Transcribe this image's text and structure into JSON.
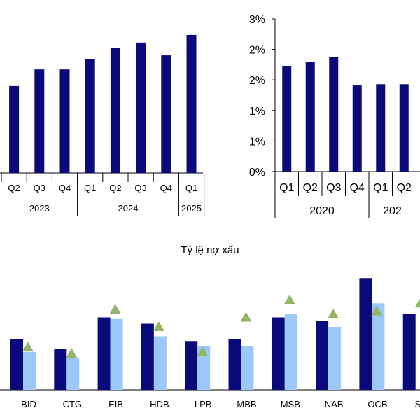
{
  "colors": {
    "navy": "#0a0a7a",
    "light_blue": "#9cc8f7",
    "green": "#93b56a",
    "axis": "#000000"
  },
  "chart_data": [
    {
      "type": "bar",
      "categories": [
        "Q2",
        "Q3",
        "Q4",
        "Q1",
        "Q2",
        "Q3",
        "Q4",
        "Q1"
      ],
      "groups": [
        {
          "label": "2023",
          "span": 3
        },
        {
          "label": "2024",
          "span": 4
        },
        {
          "label": "2025",
          "span": 1
        }
      ],
      "values": [
        68,
        81,
        81,
        89,
        98,
        102,
        92,
        108
      ],
      "ylim": [
        0,
        120
      ],
      "title": "",
      "xlabel": "",
      "ylabel": "",
      "grid": false
    },
    {
      "type": "bar",
      "categories": [
        "Q1",
        "Q2",
        "Q3",
        "Q4",
        "Q1",
        "Q2"
      ],
      "groups": [
        {
          "label": "2020",
          "span": 4
        },
        {
          "label": "202",
          "span": 2
        }
      ],
      "values": [
        1.72,
        1.79,
        1.87,
        1.41,
        1.43,
        1.43
      ],
      "ylim": [
        0,
        2.5
      ],
      "yticks": [
        "0%",
        "1%",
        "1%",
        "2%",
        "2%",
        "3%"
      ],
      "title": "",
      "xlabel": "",
      "ylabel": "",
      "grid": false
    },
    {
      "type": "bar",
      "title": "Tỷ lệ nợ xấu",
      "categories": [
        "BID",
        "CTG",
        "EIB",
        "HDB",
        "LPB",
        "MBB",
        "MSB",
        "NAB",
        "OCB",
        "SH"
      ],
      "series": [
        {
          "values": [
            1.6,
            1.3,
            2.3,
            2.1,
            1.55,
            1.6,
            2.3,
            2.2,
            3.55,
            2.4
          ]
        },
        {
          "values": [
            1.2,
            1.0,
            2.25,
            1.7,
            1.4,
            1.4,
            2.4,
            2.0,
            2.75,
            null
          ]
        },
        {
          "type": "scatter",
          "marker": "triangle",
          "values": [
            1.35,
            1.15,
            2.55,
            2.0,
            1.2,
            2.3,
            2.85,
            2.4,
            2.5,
            2.75
          ]
        }
      ],
      "ylim": [
        0,
        3.6
      ],
      "xlabel": "",
      "ylabel": "",
      "grid": false
    }
  ]
}
